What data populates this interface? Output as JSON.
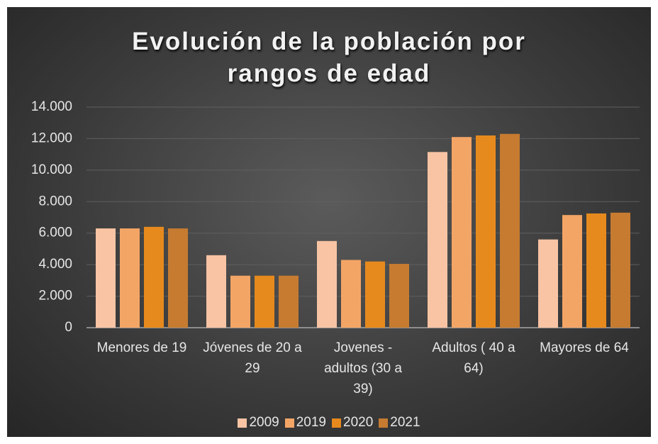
{
  "chart_data": {
    "type": "bar",
    "title": "Evolución de la población por rangos de edad",
    "categories": [
      "Menores de 19",
      "Jóvenes de 20 a 29",
      "Jovenes - adultos (30 a 39)",
      "Adultos ( 40 a 64)",
      "Mayores de 64"
    ],
    "series": [
      {
        "name": "2009",
        "color": "#f8c4a4",
        "values": [
          6300,
          4600,
          5500,
          11150,
          5600
        ]
      },
      {
        "name": "2019",
        "color": "#f3a566",
        "values": [
          6300,
          3300,
          4300,
          12100,
          7150
        ]
      },
      {
        "name": "2020",
        "color": "#e68a1e",
        "values": [
          6400,
          3300,
          4200,
          12200,
          7250
        ]
      },
      {
        "name": "2021",
        "color": "#c67b30",
        "values": [
          6300,
          3300,
          4050,
          12300,
          7300
        ]
      }
    ],
    "ylim": [
      0,
      14000
    ],
    "yticks": [
      0,
      {
        "value": 2000,
        "label": "2.000"
      },
      {
        "value": 4000,
        "label": "4.000"
      },
      {
        "value": 6000,
        "label": "6.000"
      },
      {
        "value": 8000,
        "label": "8.000"
      },
      {
        "value": 10000,
        "label": "10.000"
      },
      {
        "value": 12000,
        "label": "12.000"
      },
      {
        "value": 14000,
        "label": "14.000"
      }
    ],
    "grid": true,
    "legend": "bottom"
  }
}
